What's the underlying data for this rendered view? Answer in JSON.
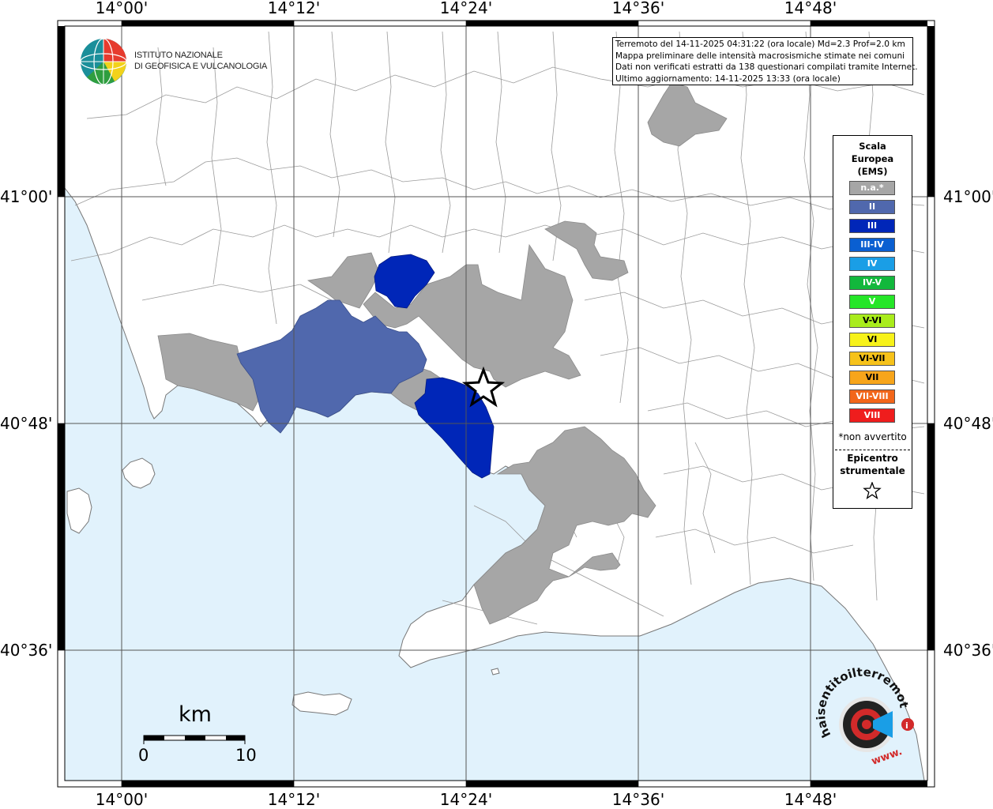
{
  "map": {
    "lon_ticks": [
      "14°00'",
      "14°12'",
      "14°24'",
      "14°36'",
      "14°48'"
    ],
    "lat_ticks": [
      "41°00'",
      "40°48'",
      "40°36'"
    ],
    "colors": {
      "sea": "#e1f2fc",
      "land": "#ffffff",
      "border": "#8f8f8f",
      "grid": "#555555",
      "na": "#a6a6a6",
      "II": "#5068ad",
      "III": "#0026b8"
    }
  },
  "info_box": {
    "line1": "Terremoto del 14-11-2025 04:31:22 (ora locale) Md=2.3 Prof=2.0 km",
    "line2": "Mappa preliminare delle intensità macrosismiche stimate nei comuni",
    "line3": "Dati non verificati estratti da 138 questionari compilati tramite Internet.",
    "line4": "Ultimo aggiornamento: 14-11-2025 13:33 (ora locale)"
  },
  "logo": {
    "line1": "ISTITUTO NAZIONALE",
    "line2": "DI GEOFISICA E VULCANOLOGIA",
    "hst_text": "haisentitoilterremoto.it",
    "hst_www": "www."
  },
  "legend": {
    "title1": "Scala",
    "title2": "Europea",
    "title3": "(EMS)",
    "items": [
      {
        "label": "n.a.*",
        "color": "#a6a6a6"
      },
      {
        "label": "II",
        "color": "#5068ad"
      },
      {
        "label": "III",
        "color": "#0026b8"
      },
      {
        "label": "III-IV",
        "color": "#0a5fd1"
      },
      {
        "label": "IV",
        "color": "#1a9ee6"
      },
      {
        "label": "IV-V",
        "color": "#12b83c"
      },
      {
        "label": "V",
        "color": "#25e628"
      },
      {
        "label": "V-VI",
        "color": "#a9ec1c"
      },
      {
        "label": "VI",
        "color": "#f7f21a"
      },
      {
        "label": "VI-VII",
        "color": "#f6c21a"
      },
      {
        "label": "VII",
        "color": "#f7a51b"
      },
      {
        "label": "VII-VIII",
        "color": "#f2661a"
      },
      {
        "label": "VIII",
        "color": "#ef1d1d"
      }
    ],
    "note": "*non avvertito",
    "epicenter1": "Epicentro",
    "epicenter2": "strumentale"
  },
  "scale_bar": {
    "title": "km",
    "start": "0",
    "end": "10"
  }
}
